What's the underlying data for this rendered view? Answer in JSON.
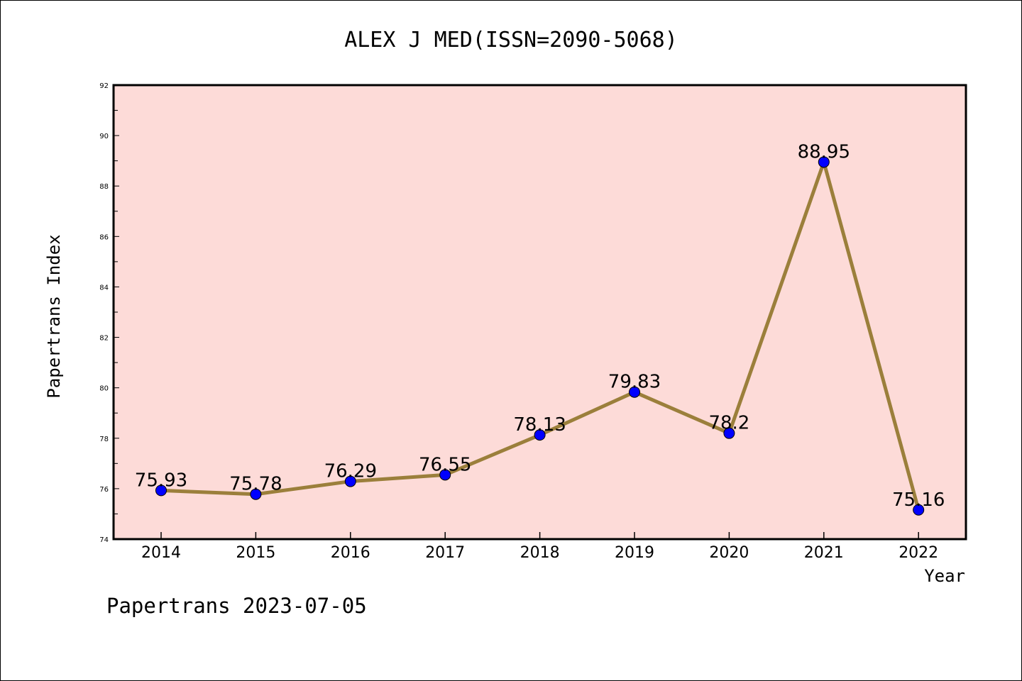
{
  "chart_data": {
    "type": "line",
    "title": "ALEX J MED(ISSN=2090-5068)",
    "xlabel": "Year",
    "ylabel": "Papertrans Index",
    "categories": [
      "2014",
      "2015",
      "2016",
      "2017",
      "2018",
      "2019",
      "2020",
      "2021",
      "2022"
    ],
    "series": [
      {
        "values": [
          75.93,
          75.78,
          76.29,
          76.55,
          78.13,
          79.83,
          78.2,
          88.95,
          75.16
        ],
        "labels": [
          "75.93",
          "75.78",
          "76.29",
          "76.55",
          "78.13",
          "79.83",
          "78.2",
          "88.95",
          "75.16"
        ],
        "line_color": "#9b7f3b",
        "marker_color": "#0000ff"
      }
    ],
    "ylim": [
      74,
      92
    ],
    "yticks": [
      "74",
      "76",
      "78",
      "80",
      "82",
      "84",
      "86",
      "88",
      "90",
      "92"
    ],
    "plot_background": "#fddbd8",
    "grid": false,
    "legend": "none"
  },
  "footer": "Papertrans 2023-07-05"
}
